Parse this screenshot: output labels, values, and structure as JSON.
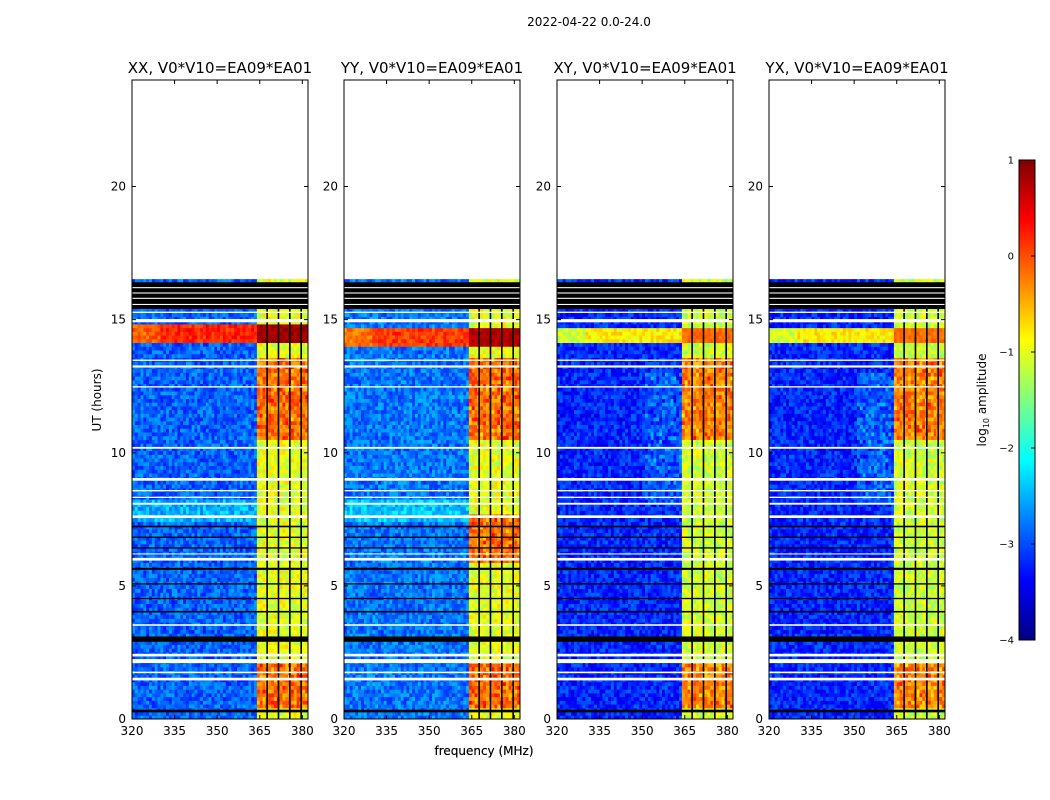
{
  "figure_title": "2022-04-22 0.0-24.0",
  "chart_data": [
    {
      "type": "heatmap",
      "title": "XX, V0*V10=EA09*EA01",
      "polarization": "XX",
      "xlabel": "frequency (MHz)",
      "ylabel": "UT (hours)",
      "xlim": [
        320,
        382
      ],
      "ylim": [
        0,
        24
      ],
      "xticks": [
        320,
        335,
        350,
        365,
        380
      ],
      "yticks": [
        0,
        5,
        10,
        15,
        20
      ],
      "data_extent_hours": [
        0,
        16.4
      ],
      "rfi_band_mhz": [
        363.6,
        381
      ],
      "strong_band_hours": [
        14.1,
        14.8
      ],
      "strong_band_level": 0.2,
      "background_level": -2.9,
      "rfi_level": -1.0
    },
    {
      "type": "heatmap",
      "title": "YY, V0*V10=EA09*EA01",
      "polarization": "YY",
      "xlabel": "frequency (MHz)",
      "ylabel": "",
      "xlim": [
        320,
        382
      ],
      "ylim": [
        0,
        24
      ],
      "xticks": [
        320,
        335,
        350,
        365,
        380
      ],
      "yticks": [
        0,
        5,
        10,
        15,
        20
      ],
      "data_extent_hours": [
        0,
        16.4
      ],
      "rfi_band_mhz": [
        363.6,
        381
      ],
      "strong_band_hours": [
        14.0,
        14.7
      ],
      "strong_band_level": 0.1,
      "background_level": -2.8,
      "rfi_level": -1.0
    },
    {
      "type": "heatmap",
      "title": "XY, V0*V10=EA09*EA01",
      "polarization": "XY",
      "xlabel": "",
      "ylabel": "",
      "xlim": [
        320,
        382
      ],
      "ylim": [
        0,
        24
      ],
      "xticks": [
        320,
        335,
        350,
        365,
        380
      ],
      "yticks": [
        0,
        5,
        10,
        15,
        20
      ],
      "data_extent_hours": [
        0,
        16.4
      ],
      "rfi_band_mhz": [
        363.6,
        381
      ],
      "strong_band_hours": [
        14.1,
        14.7
      ],
      "strong_band_level": -0.8,
      "background_level": -3.2,
      "rfi_level": -1.1
    },
    {
      "type": "heatmap",
      "title": "YX, V0*V10=EA09*EA01",
      "polarization": "YX",
      "xlabel": "",
      "ylabel": "",
      "xlim": [
        320,
        382
      ],
      "ylim": [
        0,
        24
      ],
      "xticks": [
        320,
        335,
        350,
        365,
        380
      ],
      "yticks": [
        0,
        5,
        10,
        15,
        20
      ],
      "data_extent_hours": [
        0,
        16.4
      ],
      "rfi_band_mhz": [
        363.6,
        381
      ],
      "strong_band_hours": [
        14.1,
        14.7
      ],
      "strong_band_level": -0.8,
      "background_level": -3.2,
      "rfi_level": -1.1
    }
  ],
  "colorbar": {
    "label": "log10 amplitude",
    "label_main": "log",
    "label_sub": "10",
    "label_rest": " amplitude",
    "min": -4,
    "max": 1,
    "ticks": [
      1,
      0,
      -1,
      -2,
      -3,
      -4
    ],
    "tick_labels": [
      "1",
      "0",
      "−1",
      "−2",
      "−3",
      "−4"
    ],
    "colormap": "jet",
    "colormap_stops": [
      "#00007f",
      "#0000ff",
      "#007fff",
      "#00ffff",
      "#7fff7f",
      "#ffff00",
      "#ff7f00",
      "#ff0000",
      "#7f0000"
    ]
  },
  "gap_hours": [
    [
      2.1,
      2.25
    ],
    [
      2.35,
      2.45
    ],
    [
      1.45,
      1.55
    ],
    [
      1.72,
      1.78
    ],
    [
      3.5,
      3.56
    ],
    [
      5.95,
      6.05
    ],
    [
      6.18,
      6.22
    ],
    [
      7.55,
      7.65
    ],
    [
      8.05,
      8.12
    ],
    [
      8.3,
      8.35
    ],
    [
      8.55,
      8.6
    ],
    [
      8.95,
      9.05
    ],
    [
      10.15,
      10.22
    ],
    [
      12.45,
      12.5
    ],
    [
      13.2,
      13.28
    ],
    [
      13.45,
      13.5
    ],
    [
      14.9,
      15.02
    ],
    [
      15.25,
      15.3
    ]
  ],
  "flag_hours": [
    [
      0.25,
      0.35
    ],
    [
      2.9,
      3.1
    ],
    [
      4.0,
      4.06
    ],
    [
      4.5,
      4.55
    ],
    [
      5.05,
      5.1
    ],
    [
      5.6,
      5.68
    ],
    [
      6.4,
      6.45
    ],
    [
      6.8,
      6.85
    ],
    [
      7.2,
      7.26
    ],
    [
      15.4,
      15.5
    ],
    [
      15.65,
      15.7
    ],
    [
      15.85,
      15.9
    ],
    [
      16.05,
      16.12
    ],
    [
      16.25,
      16.4
    ]
  ],
  "channel_gaps_mhz": [
    367.6,
    371.6,
    375.6,
    379.6
  ]
}
